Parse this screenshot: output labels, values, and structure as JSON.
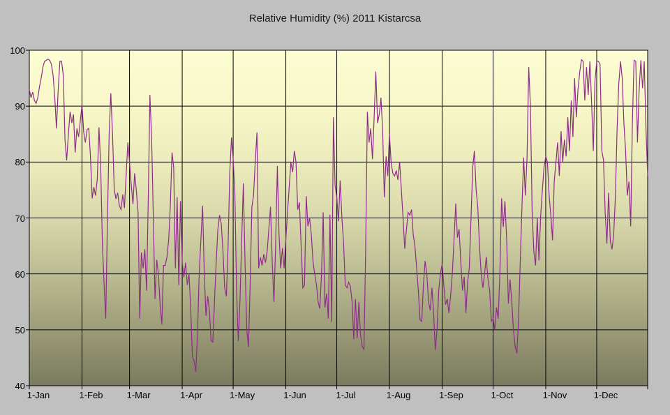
{
  "title": "Relative Humidity (%) 2011 Kistarcsa",
  "colors": {
    "canvas_background": "#c0c0c0",
    "plot_border": "#000000",
    "gridline": "#000000",
    "series_line": "#8c2d87",
    "label_text": "#000000",
    "gradient_stops": [
      "#fdfdd4",
      "#f7f7c8",
      "#ebebbb",
      "#d8d8ab",
      "#bcbc93",
      "#9c9c79",
      "#7a7a5e"
    ]
  },
  "chart_data": {
    "type": "line",
    "title": "Relative Humidity (%) 2011 Kistarcsa",
    "xlabel": "",
    "ylabel": "",
    "ylim": [
      40,
      100
    ],
    "y_ticks": [
      100,
      90,
      80,
      70,
      60,
      50,
      40
    ],
    "y_tick_labels": [
      "100",
      "90",
      "80",
      "70",
      "60",
      "50",
      "40"
    ],
    "x_tick_labels": [
      "1-Jan",
      "1-Feb",
      "1-Mar",
      "1-Apr",
      "1-May",
      "1-Jun",
      "1-Jul",
      "1-Aug",
      "1-Sep",
      "1-Oct",
      "1-Nov",
      "1-Dec"
    ],
    "grid": true,
    "legend": false,
    "series_name": "Relative Humidity (%)",
    "month_lengths": [
      31,
      28,
      31,
      30,
      31,
      30,
      31,
      31,
      30,
      31,
      30,
      31
    ],
    "daily_values_by_month": {
      "Jan": [
        93,
        91.5,
        92.5,
        91,
        90.5,
        91.5,
        93.5,
        95,
        97,
        98,
        98.2,
        98.4,
        98.2,
        97.5,
        95.5,
        91.5,
        86,
        93,
        98,
        98,
        95.5,
        84,
        80.3,
        85,
        89,
        87,
        88.5,
        81.7,
        86,
        84.5,
        87.3
      ],
      "Feb": [
        90.3,
        85.4,
        83.5,
        85.8,
        86,
        81,
        73.5,
        75.5,
        74,
        77,
        86.2,
        79.6,
        65.4,
        58.3,
        52,
        70,
        85,
        92.3,
        84.7,
        75.1,
        73.4,
        74.5,
        72.2,
        71.5,
        74.2,
        71.8,
        77.6,
        83.5
      ],
      "Mar": [
        80,
        76,
        72.5,
        78,
        75,
        71,
        52,
        63.8,
        61,
        64.4,
        57,
        73,
        92,
        84,
        70,
        55.5,
        62.5,
        60,
        54.5,
        51,
        61.5,
        61.5,
        63,
        66,
        72,
        81.7,
        79,
        61,
        73.7,
        58,
        73
      ],
      "Apr": [
        62,
        59.4,
        62,
        58,
        60,
        54,
        45.2,
        44.5,
        42.5,
        49,
        60,
        66,
        72.2,
        60,
        52.5,
        56,
        53.5,
        48.1,
        47.8,
        55,
        62,
        68,
        70.5,
        69,
        64,
        57.5,
        56,
        65,
        78,
        84.4
      ],
      "May": [
        80.5,
        74.5,
        57,
        48,
        55,
        66,
        76.2,
        62,
        50,
        46.9,
        58,
        72,
        74,
        80,
        85.3,
        61,
        63,
        61.5,
        63.5,
        62,
        64,
        68,
        72,
        62,
        55,
        65,
        79.3,
        67,
        61,
        64.6,
        61
      ],
      "Jun": [
        66,
        71,
        75.6,
        79.9,
        78.2,
        82,
        80,
        71.5,
        72.8,
        65,
        57.5,
        58,
        73.9,
        68.5,
        70,
        67,
        62.2,
        60,
        58.1,
        55,
        53.8,
        60,
        71,
        54,
        56.5,
        52,
        70.6,
        51.4,
        88,
        75.8
      ],
      "Jul": [
        73.7,
        69.4,
        76.7,
        70,
        65.5,
        58,
        57.5,
        58.5,
        57.8,
        55,
        48.3,
        55.5,
        48.5,
        55,
        49,
        47,
        46.5,
        64,
        89,
        83.5,
        86,
        80.5,
        88,
        96.2,
        87,
        88.5,
        91.5,
        85.5,
        73.7,
        81,
        77.5
      ],
      "Aug": [
        85,
        79.8,
        78,
        77.5,
        78.5,
        76.8,
        80,
        75,
        70,
        64.5,
        68,
        71,
        70.5,
        71.5,
        67,
        65,
        61,
        57,
        51.8,
        51.5,
        58,
        62.3,
        60,
        55,
        53.5,
        57.5,
        53,
        46.4,
        50,
        57,
        60
      ],
      "Sep": [
        61.8,
        58,
        54.5,
        55.5,
        53,
        56,
        60,
        66,
        72.6,
        66.5,
        68,
        62,
        57,
        59.5,
        53,
        58.5,
        61,
        70,
        79,
        82,
        75,
        72,
        65,
        60,
        57.5,
        60,
        63,
        59,
        57,
        51.5
      ],
      "Oct": [
        52,
        50,
        54,
        52,
        60,
        73.5,
        68.4,
        73,
        66,
        54.7,
        59,
        55,
        50,
        47,
        45.8,
        52,
        62,
        72,
        80.8,
        74,
        81,
        97,
        90,
        71,
        64,
        61.5,
        70,
        62.4,
        70.4,
        75,
        79
      ],
      "Nov": [
        81,
        80,
        74,
        70.4,
        66,
        76.5,
        80,
        83.5,
        77.5,
        85.5,
        80,
        84,
        81,
        88,
        82,
        91,
        84.5,
        95,
        88,
        93,
        96,
        98.3,
        98,
        91,
        97,
        92,
        98,
        90.5,
        82,
        94.5
      ],
      "Dec": [
        98,
        98,
        97.5,
        82,
        80.4,
        71,
        65.4,
        74.5,
        65.8,
        64.4,
        67,
        74,
        86,
        94,
        98,
        95,
        87,
        82,
        74,
        76.5,
        68.5,
        87,
        98.2,
        98,
        83.5,
        93,
        98.2,
        93.2,
        98,
        86,
        77.5
      ]
    }
  }
}
